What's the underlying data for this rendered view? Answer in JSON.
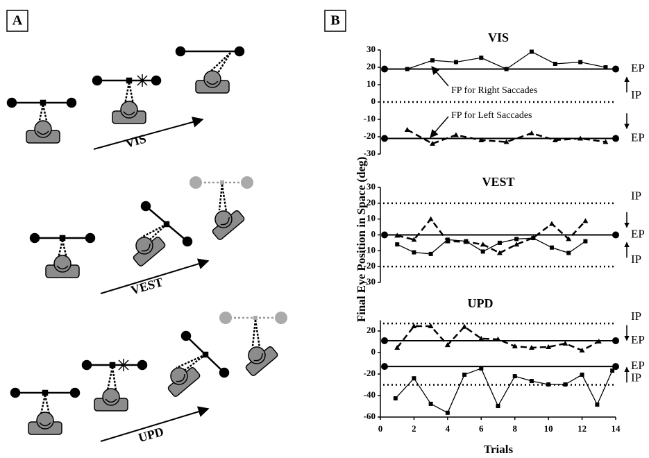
{
  "panels": [
    "A",
    "B"
  ],
  "diagram_labels": [
    "VIS",
    "VEST",
    "UPD"
  ],
  "ylabel": "Final Eye Position in Space (deg)",
  "xlabel": "Trials",
  "chart_data": [
    {
      "type": "line",
      "title": "VIS",
      "xlim": [
        0,
        14
      ],
      "ylim": [
        -30,
        30
      ],
      "yticks": [
        -30,
        -20,
        -10,
        0,
        10,
        20,
        30
      ],
      "reference_lines": [
        {
          "y": 19,
          "style": "solid",
          "label": "EP"
        },
        {
          "y": 0,
          "style": "dotted",
          "label": "IP"
        },
        {
          "y": -21,
          "style": "solid",
          "label": "EP"
        }
      ],
      "annotations": [
        "FP for Right Saccades",
        "FP for Left Saccades"
      ],
      "series": [
        {
          "color": "#000000",
          "marker": "square",
          "dash": "solid",
          "x": [
            1.6,
            3.1,
            4.5,
            6,
            7.5,
            9,
            10.4,
            11.9,
            13.4
          ],
          "values": [
            19,
            24,
            23,
            25.5,
            19,
            29,
            22,
            23,
            20
          ]
        },
        {
          "color": "#000000",
          "marker": "triangle",
          "dash": "dashed",
          "x": [
            1.6,
            3.1,
            4.5,
            6,
            7.5,
            9,
            10.4,
            11.9,
            13.4
          ],
          "values": [
            -16,
            -24,
            -19,
            -22,
            -23,
            -18,
            -22,
            -21,
            -23
          ]
        }
      ]
    },
    {
      "type": "line",
      "title": "VEST",
      "xlim": [
        0,
        14
      ],
      "ylim": [
        -30,
        30
      ],
      "yticks": [
        -30,
        -20,
        -10,
        0,
        10,
        20,
        30
      ],
      "reference_lines": [
        {
          "y": 20,
          "style": "dotted",
          "label": "IP"
        },
        {
          "y": 0,
          "style": "solid",
          "label": "EP"
        },
        {
          "y": -20,
          "style": "dotted",
          "label": "IP"
        }
      ],
      "series": [
        {
          "color": "#000000",
          "marker": "square",
          "dash": "solid",
          "x": [
            1,
            2,
            3,
            4,
            5.1,
            6.1,
            7.1,
            8.1,
            9.1,
            10.2,
            11.2,
            12.2
          ],
          "values": [
            -6,
            -11,
            -12,
            -3,
            -4,
            -10.5,
            -5,
            -2.6,
            -2,
            -8,
            -11.4,
            -4
          ]
        },
        {
          "color": "#000000",
          "marker": "triangle",
          "dash": "dashed",
          "x": [
            1,
            2,
            3,
            4,
            5.1,
            6.1,
            7.1,
            8.1,
            9.1,
            10.2,
            11.2,
            12.2
          ],
          "values": [
            -0.4,
            -3,
            10,
            -4,
            -4.4,
            -6,
            -11.4,
            -6,
            -1.8,
            7,
            -2.6,
            8.8
          ]
        }
      ]
    },
    {
      "type": "line",
      "title": "UPD",
      "xlim": [
        0,
        14
      ],
      "ylim": [
        -60,
        30
      ],
      "yticks": [
        -60,
        -40,
        -20,
        0,
        20
      ],
      "xticks": [
        0,
        2,
        4,
        6,
        8,
        10,
        12,
        14
      ],
      "reference_lines": [
        {
          "y": 27,
          "style": "dotted",
          "label": "IP"
        },
        {
          "y": 11,
          "style": "solid",
          "label": "EP"
        },
        {
          "y": -13,
          "style": "solid",
          "label": "EP"
        },
        {
          "y": -30,
          "style": "dotted",
          "label": "IP"
        }
      ],
      "series": [
        {
          "color": "#000000",
          "marker": "triangle",
          "dash": "dashed",
          "x": [
            1,
            2,
            3,
            4,
            5,
            6,
            7,
            8,
            9,
            10,
            11,
            12,
            13
          ],
          "values": [
            4.5,
            24.5,
            24.5,
            7,
            24,
            13,
            12.3,
            5.8,
            4.5,
            5.2,
            8.4,
            2,
            10.3
          ]
        },
        {
          "color": "#000000",
          "marker": "square",
          "dash": "solid",
          "x": [
            0.9,
            2,
            3,
            4,
            5,
            6,
            7,
            8,
            9,
            10,
            11,
            12,
            12.9,
            13.8
          ],
          "values": [
            -42.6,
            -24,
            -47.7,
            -56,
            -20.6,
            -14.8,
            -49.7,
            -22,
            -26.5,
            -29.7,
            -29.7,
            -20.6,
            -48.4,
            -16.8
          ]
        }
      ]
    }
  ]
}
